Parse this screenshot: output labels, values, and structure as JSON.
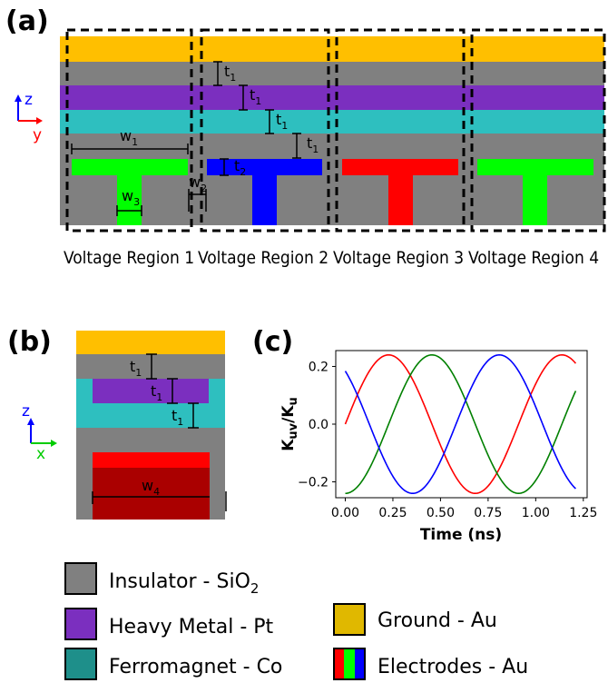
{
  "panels": {
    "a": "(a)",
    "b": "(b)",
    "c": "(c)"
  },
  "panel_a": {
    "regions": [
      "Voltage Region 1",
      "Voltage Region 2",
      "Voltage Region 3",
      "Voltage Region 4"
    ],
    "axes": {
      "up": "z",
      "right": "y"
    },
    "dimensions": {
      "t": "t",
      "t_sub": "1",
      "t2_sub": "2",
      "w": "w",
      "w1_sub": "1",
      "w2_sub": "2",
      "w3_sub": "3"
    },
    "electrode_colors": [
      "#00ff00",
      "#0000ff",
      "#ff0000",
      "#00ff00"
    ]
  },
  "panel_b": {
    "axes": {
      "up": "z",
      "right": "x"
    },
    "dimensions": {
      "t": "t",
      "t_sub": "1",
      "w": "w",
      "w4_sub": "4"
    }
  },
  "colors": {
    "insulator": "#808080",
    "heavy_metal": "#7b2fbf",
    "ferromagnet": "#2ebfbf",
    "ground": "#ffbf00",
    "red": "#ff0000",
    "green": "#008000",
    "blue": "#0000ff"
  },
  "chart_data": {
    "type": "line",
    "ylabel": "K_uv/K_u",
    "xlabel": "Time (ns)",
    "xlim": [
      -0.05,
      1.27
    ],
    "ylim": [
      -0.255,
      0.255
    ],
    "xticks": [
      "0.00",
      "0.25",
      "0.50",
      "0.75",
      "1.00",
      "1.25"
    ],
    "yticks": [
      "0.2",
      "0.0",
      "−0.2"
    ],
    "series": [
      {
        "color": "#ff0000",
        "amplitude": 0.24,
        "period": 0.91,
        "phase_deg": 0,
        "x": [
          0.0,
          0.23,
          0.45,
          0.68,
          0.91,
          1.14,
          1.21
        ],
        "y": [
          0.0,
          0.24,
          0.0,
          -0.24,
          0.0,
          0.24,
          0.21
        ]
      },
      {
        "color": "#008000",
        "amplitude": 0.24,
        "period": 0.91,
        "phase_deg": -90,
        "x": [
          0.0,
          0.23,
          0.48,
          0.7,
          0.93,
          1.16,
          1.21
        ],
        "y": [
          -0.24,
          0.0,
          0.24,
          0.0,
          -0.24,
          0.0,
          0.09
        ]
      },
      {
        "color": "#0000ff",
        "amplitude": 0.24,
        "period": 0.91,
        "phase_deg": 130,
        "x": [
          0.0,
          0.12,
          0.35,
          0.58,
          0.8,
          1.03,
          1.21
        ],
        "y": [
          0.18,
          0.0,
          -0.24,
          0.0,
          0.24,
          0.0,
          -0.22
        ]
      }
    ]
  },
  "legend": {
    "insulator": "Insulator - SiO",
    "insulator_sub": "2",
    "heavy_metal": "Heavy Metal - Pt",
    "ferromagnet": "Ferromagnet - Co",
    "ground": "Ground - Au",
    "electrodes": "Electrodes - Au"
  }
}
